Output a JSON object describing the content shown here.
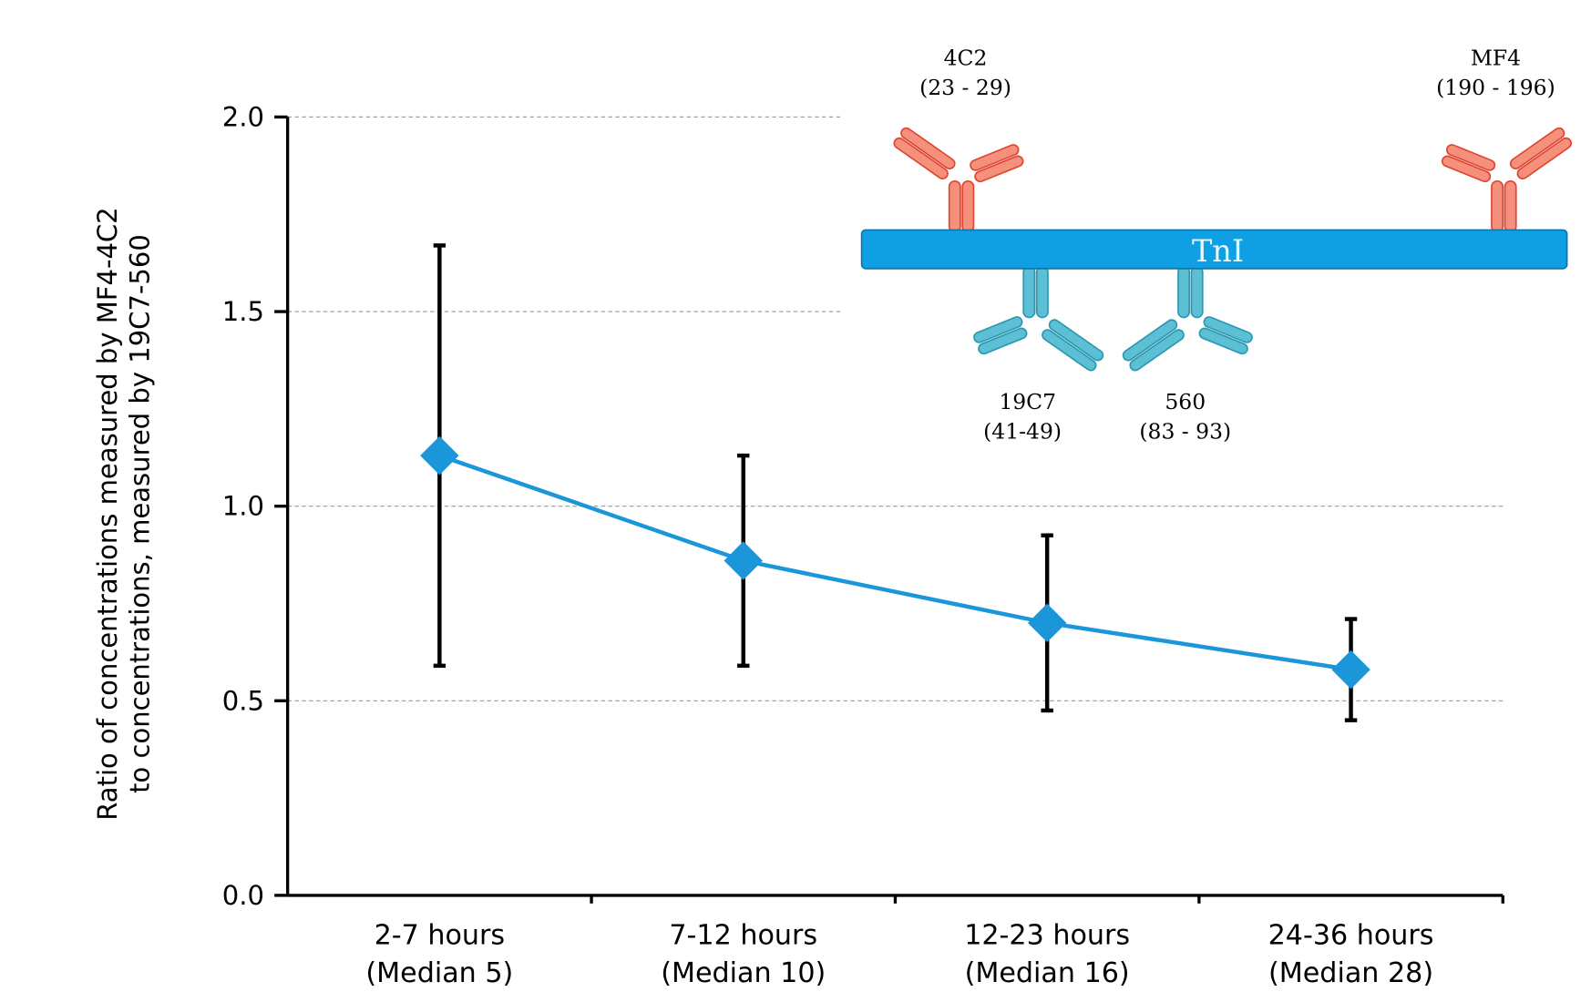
{
  "chart_data": {
    "type": "line",
    "ylabel": [
      "Ratio of concentrations measured by MF4-4C2",
      "to concentrations, measured by 19C7-560"
    ],
    "categories": [
      [
        "2-7 hours",
        "(Median 5)"
      ],
      [
        "7-12 hours",
        "(Median 10)"
      ],
      [
        "12-23 hours",
        "(Median 16)"
      ],
      [
        "24-36 hours",
        "(Median 28)"
      ]
    ],
    "values": [
      1.13,
      0.86,
      0.7,
      0.58
    ],
    "errors": [
      0.54,
      0.27,
      0.225,
      0.13
    ],
    "color": "#1a96d9",
    "ylim": [
      0,
      2
    ],
    "yticks": [
      {
        "value": 0,
        "label": "0.0"
      },
      0.5,
      {
        "value": 1,
        "label": "1.0"
      },
      1.5,
      {
        "value": 2,
        "label": "2.0"
      }
    ],
    "grid": true,
    "inset": {
      "protein": "TnI",
      "antibodies": [
        {
          "name": "4C2",
          "range": "(23 - 29)"
        },
        {
          "name": "MF4",
          "range": "(190 - 196)"
        },
        {
          "name": "19C7",
          "range": "(41-49)"
        },
        {
          "name": "560",
          "range": "(83 - 93)"
        }
      ]
    }
  }
}
